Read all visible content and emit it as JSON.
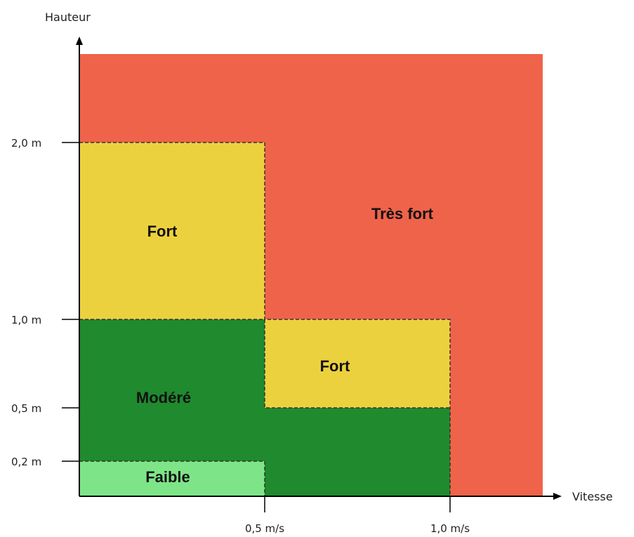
{
  "axes": {
    "y_label": "Hauteur",
    "x_label": "Vitesse",
    "y_ticks": [
      "2,0 m",
      "1,0 m",
      "0,5 m",
      "0,2 m"
    ],
    "x_ticks": [
      "0,5 m/s",
      "1,0 m/s"
    ]
  },
  "zones": {
    "tres_fort": "Très fort",
    "fort_top": "Fort",
    "fort_mid": "Fort",
    "modere": "Modéré",
    "faible": "Faible"
  },
  "colors": {
    "tres_fort": "#ef634a",
    "fort": "#ecd13e",
    "modere": "#1f8a2e",
    "faible": "#7de588"
  }
}
